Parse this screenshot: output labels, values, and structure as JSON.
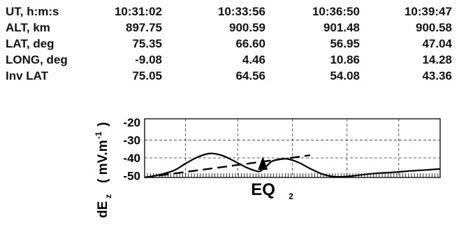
{
  "table": {
    "row_labels": [
      "UT,  h:m:s",
      "ALT, km",
      "LAT, deg",
      "LONG, deg",
      "Inv LAT"
    ],
    "columns": [
      [
        "10:31:02",
        "897.75",
        "75.35",
        "-9.08",
        "75.05"
      ],
      [
        "10:33:56",
        "900.59",
        "66.60",
        "4.46",
        "64.56"
      ],
      [
        "10:36:50",
        "901.48",
        "56.95",
        "10.86",
        "54.08"
      ],
      [
        "10:39:47",
        "900.58",
        "47.04",
        "14.28",
        "43.36"
      ]
    ]
  },
  "chart_data": {
    "type": "line",
    "ylabel_main": "dE",
    "ylabel_sub": "z",
    "ylabel_unit": "( mV.m",
    "ylabel_sup": "-1",
    "ylabel_close": ")",
    "yticks": [
      "-20",
      "-30",
      "-40",
      "-50"
    ],
    "ylim": [
      -51,
      -18
    ],
    "xlim": [
      0,
      1
    ],
    "grid": true,
    "annotation_main": "EQ",
    "annotation_sub": "2",
    "eq_marker_x": 0.4,
    "series": [
      {
        "style": "solid",
        "x": [
          0.0,
          0.05,
          0.1,
          0.14,
          0.18,
          0.22,
          0.26,
          0.3,
          0.34,
          0.37,
          0.39,
          0.41,
          0.43,
          0.45,
          0.48,
          0.52,
          0.56,
          0.6,
          0.64,
          0.68,
          0.72,
          0.76,
          0.8,
          0.85,
          0.9,
          0.95,
          1.0
        ],
        "y": [
          -51,
          -49.5,
          -47,
          -43,
          -39.5,
          -37.5,
          -38.5,
          -41.5,
          -45,
          -47,
          -47.5,
          -45,
          -42,
          -41,
          -40.5,
          -42.5,
          -46,
          -49,
          -50.5,
          -50.5,
          -49.8,
          -49,
          -48.5,
          -48,
          -47.3,
          -46.8,
          -46.2
        ]
      },
      {
        "style": "dashed",
        "x": [
          0.0,
          0.56
        ],
        "y": [
          -51,
          -38.5
        ]
      }
    ]
  }
}
